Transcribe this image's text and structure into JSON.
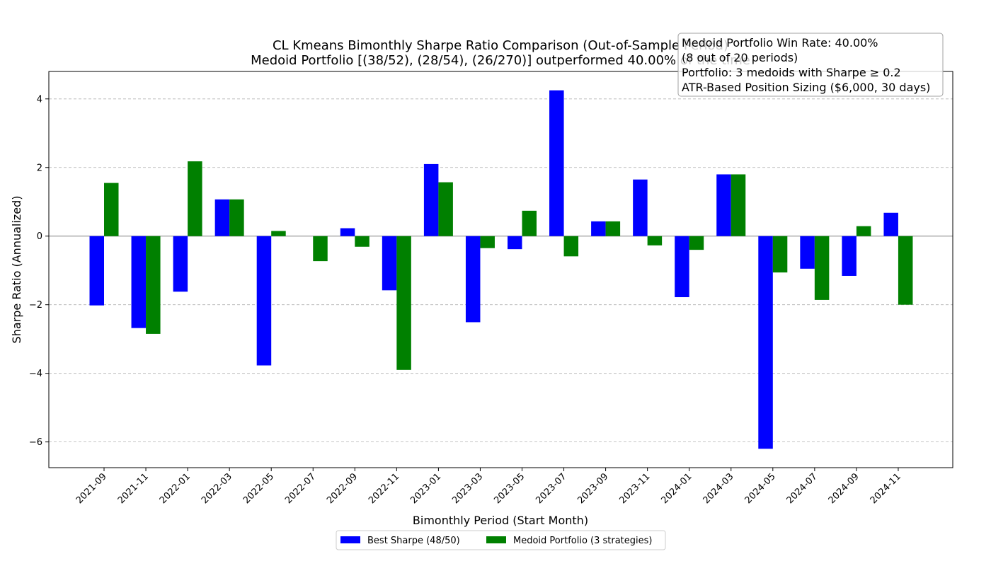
{
  "chart_data": {
    "type": "bar",
    "title": "CL Kmeans Bimonthly Sharpe Ratio Comparison (Out-of-Sample Period)",
    "subtitle": "Medoid Portfolio [(38/52), (28/54), (26/270)] outperformed 40.00% of the time",
    "xlabel": "Bimonthly Period (Start Month)",
    "ylabel": "Sharpe Ratio (Annualized)",
    "ylim": [
      -6.75,
      4.8
    ],
    "yticks": [
      -6,
      -4,
      -2,
      0,
      2,
      4
    ],
    "ytick_labels": [
      "−6",
      "−4",
      "−2",
      "0",
      "2",
      "4"
    ],
    "grid": true,
    "legend_position": "bottom-center",
    "categories": [
      "2021-09",
      "2021-11",
      "2022-01",
      "2022-03",
      "2022-05",
      "2022-07",
      "2022-09",
      "2022-11",
      "2023-01",
      "2023-03",
      "2023-05",
      "2023-07",
      "2023-09",
      "2023-11",
      "2024-01",
      "2024-03",
      "2024-05",
      "2024-07",
      "2024-09",
      "2024-11"
    ],
    "series": [
      {
        "name": "Best Sharpe (48/50)",
        "color": "#0000ff",
        "values": [
          -2.02,
          -2.68,
          -1.62,
          1.07,
          -3.77,
          0.0,
          0.23,
          -1.58,
          2.1,
          -2.51,
          -0.38,
          4.25,
          0.43,
          1.65,
          -1.78,
          1.8,
          -6.2,
          -0.95,
          -1.16,
          0.68
        ]
      },
      {
        "name": "Medoid Portfolio (3 strategies)",
        "color": "#008000",
        "values": [
          1.55,
          -2.85,
          2.18,
          1.07,
          0.15,
          -0.73,
          -0.31,
          -3.9,
          1.57,
          -0.35,
          0.74,
          -0.59,
          0.43,
          -0.27,
          -0.4,
          1.8,
          -1.06,
          -1.86,
          0.29,
          -2.0
        ]
      }
    ],
    "annotations": [
      "Medoid Portfolio Win Rate: 40.00%",
      "(8 out of 20 periods)",
      "Portfolio: 3 medoids with Sharpe ≥ 0.2",
      "ATR-Based Position Sizing ($6,000, 30 days)"
    ]
  }
}
